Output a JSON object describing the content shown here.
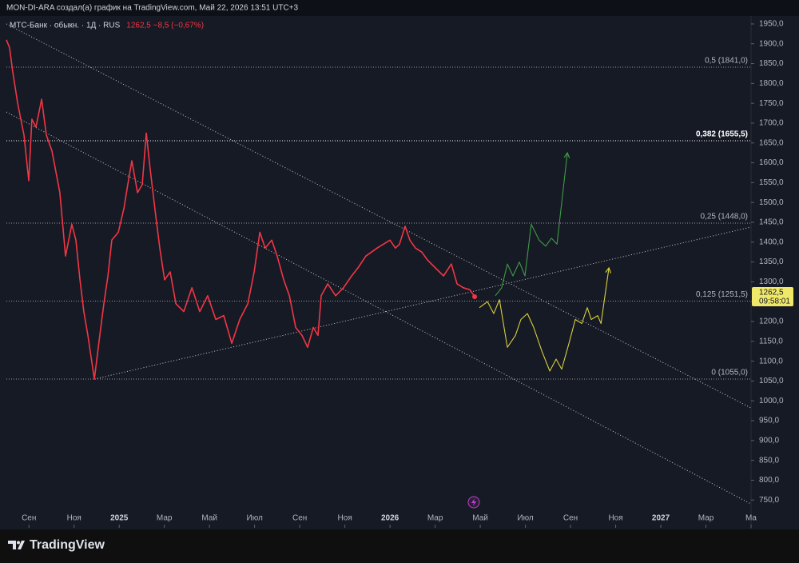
{
  "header": {
    "text": "MON-DI-ARA создал(а) график на TradingView.com, Май 22, 2026 13:51 UTC+3"
  },
  "footer": {
    "logo": "TradingView"
  },
  "chart_data": {
    "type": "line",
    "legend_values": "1262,5  −8,5 (−0,67%)",
    "last_price": {
      "value": 1262.5,
      "label": "1262,5",
      "countdown": "09:58:01"
    },
    "xlim": [
      7,
      40
    ],
    "xticks": [
      {
        "value": 8,
        "label": "Сен"
      },
      {
        "value": 10,
        "label": "Ноя"
      },
      {
        "value": 12,
        "label": "2025"
      },
      {
        "value": 14,
        "label": "Мар"
      },
      {
        "value": 16,
        "label": "Май"
      },
      {
        "value": 18,
        "label": "Июл"
      },
      {
        "value": 20,
        "label": "Сен"
      },
      {
        "value": 22,
        "label": "Ноя"
      },
      {
        "value": 24,
        "label": "2026"
      },
      {
        "value": 26,
        "label": "Мар"
      },
      {
        "value": 28,
        "label": "Май"
      },
      {
        "value": 30,
        "label": "Июл"
      },
      {
        "value": 32,
        "label": "Сен"
      },
      {
        "value": 34,
        "label": "Ноя"
      },
      {
        "value": 36,
        "label": "2027"
      },
      {
        "value": 38,
        "label": "Мар"
      },
      {
        "value": 40,
        "label": "Ма"
      }
    ],
    "ylim": [
      680,
      1970
    ],
    "yticks": [
      {
        "value": 750,
        "label": "750,0"
      },
      {
        "value": 800,
        "label": "800,0"
      },
      {
        "value": 850,
        "label": "850,0"
      },
      {
        "value": 900,
        "label": "900,0"
      },
      {
        "value": 950,
        "label": "950,0"
      },
      {
        "value": 1000,
        "label": "1000,0"
      },
      {
        "value": 1050,
        "label": "1050,0"
      },
      {
        "value": 1100,
        "label": "1100,0"
      },
      {
        "value": 1150,
        "label": "1150,0"
      },
      {
        "value": 1200,
        "label": "1200,0"
      },
      {
        "value": 1250,
        "label": "1250,0"
      },
      {
        "value": 1300,
        "label": "1300,0"
      },
      {
        "value": 1350,
        "label": "1350,0"
      },
      {
        "value": 1400,
        "label": "1400,0"
      },
      {
        "value": 1450,
        "label": "1450,0"
      },
      {
        "value": 1500,
        "label": "1500,0"
      },
      {
        "value": 1550,
        "label": "1550,0"
      },
      {
        "value": 1600,
        "label": "1600,0"
      },
      {
        "value": 1650,
        "label": "1650,0"
      },
      {
        "value": 1700,
        "label": "1700,0"
      },
      {
        "value": 1750,
        "label": "1750,0"
      },
      {
        "value": 1800,
        "label": "1800,0"
      },
      {
        "value": 1850,
        "label": "1850,0"
      },
      {
        "value": 1900,
        "label": "1900,0"
      },
      {
        "value": 1950,
        "label": "1950,0"
      }
    ],
    "series": [
      {
        "name": "МТС-Банк · обыкн. · 1Д · RUS",
        "color": "#f23645",
        "x": [
          7.0,
          7.14,
          7.28,
          7.5,
          7.78,
          7.99,
          8.13,
          8.31,
          8.56,
          8.77,
          9.02,
          9.37,
          9.62,
          9.9,
          10.08,
          10.26,
          10.43,
          10.61,
          10.9,
          11.14,
          11.32,
          11.5,
          11.67,
          11.96,
          12.21,
          12.38,
          12.56,
          12.81,
          13.02,
          13.2,
          13.37,
          13.62,
          13.8,
          14.01,
          14.26,
          14.51,
          14.86,
          15.22,
          15.57,
          15.92,
          16.28,
          16.63,
          16.99,
          17.34,
          17.7,
          17.98,
          18.23,
          18.47,
          18.76,
          19.0,
          19.29,
          19.54,
          19.82,
          20.1,
          20.35,
          20.6,
          20.81,
          20.95,
          21.24,
          21.59,
          21.94,
          22.3,
          22.58,
          22.93,
          23.18,
          23.43,
          23.71,
          24.0,
          24.24,
          24.42,
          24.67,
          24.88,
          25.13,
          25.41,
          25.66,
          26.01,
          26.37,
          26.72,
          26.97,
          27.25,
          27.54,
          27.75
        ],
        "values": [
          1910,
          1890,
          1830,
          1750,
          1670,
          1555,
          1710,
          1690,
          1760,
          1670,
          1630,
          1525,
          1365,
          1445,
          1405,
          1305,
          1225,
          1165,
          1055,
          1165,
          1245,
          1315,
          1405,
          1425,
          1485,
          1545,
          1605,
          1525,
          1545,
          1675,
          1585,
          1465,
          1385,
          1305,
          1325,
          1245,
          1225,
          1285,
          1225,
          1265,
          1205,
          1215,
          1145,
          1205,
          1245,
          1325,
          1425,
          1385,
          1405,
          1365,
          1305,
          1265,
          1185,
          1165,
          1135,
          1185,
          1165,
          1265,
          1295,
          1265,
          1285,
          1315,
          1335,
          1365,
          1375,
          1385,
          1395,
          1405,
          1385,
          1395,
          1440,
          1405,
          1385,
          1375,
          1355,
          1335,
          1315,
          1345,
          1295,
          1285,
          1280,
          1262.5
        ]
      },
      {
        "color": "#3f9b45",
        "x": [
          28.67,
          28.95,
          29.2,
          29.45,
          29.73,
          29.98,
          30.26,
          30.61,
          30.9,
          31.15,
          31.4,
          31.86
        ],
        "values": [
          1265,
          1285,
          1345,
          1315,
          1350,
          1315,
          1445,
          1405,
          1390,
          1410,
          1395,
          1625
        ]
      },
      {
        "color": "#d9cf3c",
        "x": [
          27.96,
          28.32,
          28.6,
          28.85,
          29.2,
          29.56,
          29.8,
          30.09,
          30.37,
          30.73,
          31.08,
          31.36,
          31.61,
          31.93,
          32.21,
          32.5,
          32.74,
          32.92,
          33.2,
          33.35,
          33.7
        ],
        "values": [
          1235,
          1250,
          1220,
          1255,
          1135,
          1165,
          1205,
          1220,
          1185,
          1125,
          1075,
          1105,
          1080,
          1145,
          1205,
          1195,
          1235,
          1205,
          1215,
          1195,
          1335
        ]
      }
    ],
    "levels": [
      {
        "label": "0,5 (1841,0)",
        "value": 1841
      },
      {
        "label": "0,382 (1655,5)",
        "value": 1655.5
      },
      {
        "label": "0,25 (1448,0)",
        "value": 1448
      },
      {
        "label": "0,125 (1251,5)",
        "value": 1251.5
      },
      {
        "label": "0 (1055,0)",
        "value": 1055
      }
    ],
    "trendlines": [
      {
        "x": [
          7,
          40
        ],
        "values": [
          1950,
          982
        ]
      },
      {
        "x": [
          7,
          40
        ],
        "values": [
          1728,
          740
        ]
      },
      {
        "x": [
          10.9,
          40
        ],
        "values": [
          1055,
          1438
        ]
      }
    ]
  }
}
